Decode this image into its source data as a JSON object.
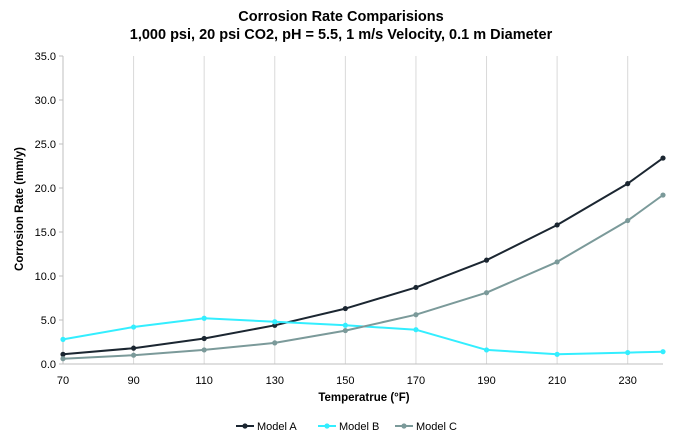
{
  "chart_data": {
    "type": "line",
    "title": "Corrosion Rate Comparisions",
    "subtitle": "1,000 psi, 20 psi CO2, pH = 5.5, 1 m/s Velocity, 0.1 m Diameter",
    "xlabel": "Temperatrue (°F)",
    "ylabel": "Corrosion Rate (mm/y)",
    "xlim": [
      70,
      240
    ],
    "ylim": [
      0,
      35
    ],
    "x_ticks": [
      70,
      90,
      110,
      130,
      150,
      170,
      190,
      210,
      230
    ],
    "x_tick_labels": [
      "70",
      "90",
      "110",
      "130",
      "150",
      "170",
      "190",
      "210",
      "230"
    ],
    "y_ticks": [
      0,
      5,
      10,
      15,
      20,
      25,
      30,
      35
    ],
    "y_tick_labels": [
      "0.0",
      "5.0",
      "10.0",
      "15.0",
      "20.0",
      "25.0",
      "30.0",
      "35.0"
    ],
    "grid": "vertical",
    "legend_position": "bottom",
    "x": [
      70,
      90,
      110,
      130,
      150,
      170,
      190,
      210,
      230,
      240
    ],
    "series": [
      {
        "name": "Model A",
        "color": "#1b2631",
        "values": [
          1.1,
          1.8,
          2.9,
          4.4,
          6.3,
          8.7,
          11.8,
          15.8,
          20.5,
          23.4
        ]
      },
      {
        "name": "Model B",
        "color": "#33eeff",
        "values": [
          2.8,
          4.2,
          5.2,
          4.8,
          4.4,
          3.9,
          1.6,
          1.1,
          1.3,
          1.4
        ]
      },
      {
        "name": "Model C",
        "color": "#7b9a9a",
        "values": [
          0.6,
          1.0,
          1.6,
          2.4,
          3.8,
          5.6,
          8.1,
          11.6,
          16.3,
          19.2
        ]
      }
    ]
  }
}
